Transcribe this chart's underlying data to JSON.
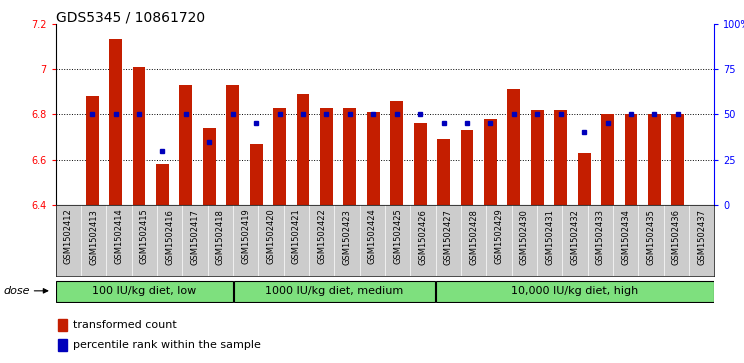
{
  "title": "GDS5345 / 10861720",
  "samples": [
    "GSM1502412",
    "GSM1502413",
    "GSM1502414",
    "GSM1502415",
    "GSM1502416",
    "GSM1502417",
    "GSM1502418",
    "GSM1502419",
    "GSM1502420",
    "GSM1502421",
    "GSM1502422",
    "GSM1502423",
    "GSM1502424",
    "GSM1502425",
    "GSM1502426",
    "GSM1502427",
    "GSM1502428",
    "GSM1502429",
    "GSM1502430",
    "GSM1502431",
    "GSM1502432",
    "GSM1502433",
    "GSM1502434",
    "GSM1502435",
    "GSM1502436",
    "GSM1502437"
  ],
  "red_values": [
    6.88,
    7.13,
    7.01,
    6.58,
    6.93,
    6.74,
    6.93,
    6.67,
    6.83,
    6.89,
    6.83,
    6.83,
    6.81,
    6.86,
    6.76,
    6.69,
    6.73,
    6.78,
    6.91,
    6.82,
    6.82,
    6.63,
    6.8,
    6.8,
    6.8,
    6.8
  ],
  "blue_values": [
    50,
    50,
    50,
    30,
    50,
    35,
    50,
    45,
    50,
    50,
    50,
    50,
    50,
    50,
    50,
    45,
    45,
    45,
    50,
    50,
    50,
    40,
    45,
    50,
    50,
    50
  ],
  "ylim_left": [
    6.4,
    7.2
  ],
  "ylim_right": [
    0,
    100
  ],
  "yticks_left": [
    6.4,
    6.6,
    6.8,
    7.0,
    7.2
  ],
  "ytick_labels_left": [
    "6.4",
    "6.6",
    "6.8",
    "7",
    "7.2"
  ],
  "yticks_right": [
    0,
    25,
    50,
    75,
    100
  ],
  "ytick_labels_right": [
    "0",
    "25",
    "50",
    "75",
    "100%"
  ],
  "groups": [
    {
      "label": "100 IU/kg diet, low",
      "start": 0,
      "end": 7
    },
    {
      "label": "1000 IU/kg diet, medium",
      "start": 7,
      "end": 15
    },
    {
      "label": "10,000 IU/kg diet, high",
      "start": 15,
      "end": 26
    }
  ],
  "group_color": "#7EE07E",
  "bar_color": "#C41E00",
  "bar_base": 6.4,
  "blue_marker_color": "#0000BB",
  "dose_label": "dose",
  "legend_items": [
    {
      "color": "#C41E00",
      "label": "transformed count"
    },
    {
      "color": "#0000BB",
      "label": "percentile rank within the sample"
    }
  ],
  "plot_bg_color": "#FFFFFF",
  "xtick_bg_color": "#CCCCCC",
  "title_fontsize": 10,
  "tick_fontsize": 7,
  "xtick_fontsize": 6,
  "group_fontsize": 8,
  "legend_fontsize": 8
}
